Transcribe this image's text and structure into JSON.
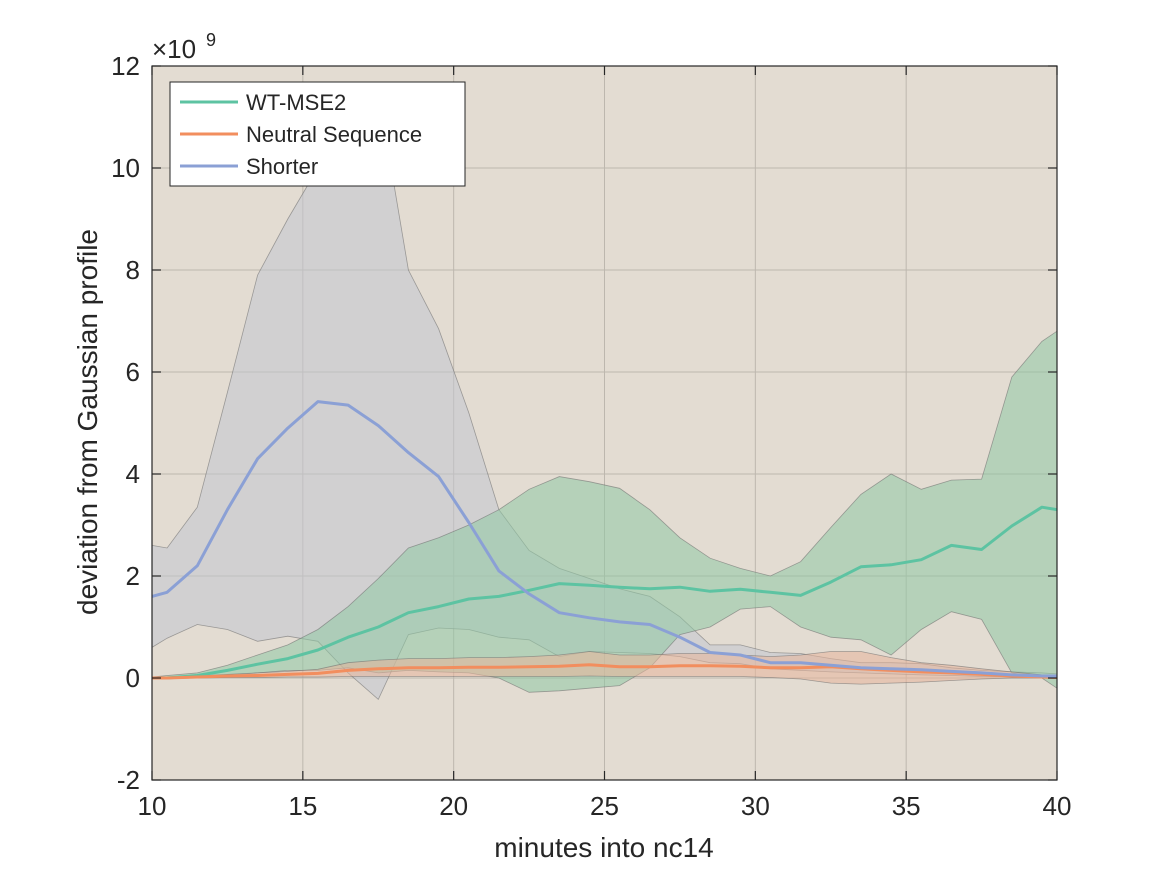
{
  "chart_data": {
    "type": "line",
    "title": "",
    "xlabel": "minutes into nc14",
    "ylabel": "deviation from Gaussian profile",
    "y_exponent_label": "×10",
    "y_exponent_power": "9",
    "xlim": [
      10,
      40
    ],
    "ylim": [
      -2,
      12
    ],
    "x_ticks": [
      10,
      15,
      20,
      25,
      30,
      35,
      40
    ],
    "y_ticks": [
      -2,
      0,
      2,
      4,
      6,
      8,
      10,
      12
    ],
    "x_tick_labels": [
      "10",
      "15",
      "20",
      "25",
      "30",
      "35",
      "40"
    ],
    "y_tick_labels": [
      "-2",
      "0",
      "2",
      "4",
      "6",
      "8",
      "10",
      "12"
    ],
    "grid": true,
    "legend_position": "top-left",
    "background_color": "#e3dcd2",
    "x": [
      10,
      10.5,
      11.5,
      12.5,
      13.5,
      14.5,
      15.5,
      16.5,
      17.5,
      18.5,
      19.5,
      20.5,
      21.5,
      22.5,
      23.5,
      24.5,
      25.5,
      26.5,
      27.5,
      28.5,
      29.5,
      30.5,
      31.5,
      32.5,
      33.5,
      34.5,
      35.5,
      36.5,
      37.5,
      38.5,
      39.5,
      40
    ],
    "series": [
      {
        "name": "WT-MSE2",
        "color": "#5dc3a2",
        "band_color": "#8fc9a4",
        "mean": [
          0,
          0,
          0.05,
          0.15,
          0.27,
          0.38,
          0.55,
          0.8,
          1.0,
          1.28,
          1.4,
          1.55,
          1.6,
          1.72,
          1.85,
          1.82,
          1.78,
          1.75,
          1.78,
          1.7,
          1.74,
          1.68,
          1.62,
          1.88,
          2.18,
          2.22,
          2.32,
          2.6,
          2.52,
          2.98,
          3.35,
          3.3
        ],
        "upper": [
          0.02,
          0.05,
          0.1,
          0.25,
          0.45,
          0.65,
          0.95,
          1.4,
          1.95,
          2.55,
          2.75,
          3.0,
          3.3,
          3.7,
          3.95,
          3.85,
          3.72,
          3.3,
          2.75,
          2.35,
          2.15,
          2.0,
          2.28,
          2.95,
          3.6,
          4.0,
          3.7,
          3.88,
          3.9,
          5.9,
          6.6,
          6.8
        ],
        "lower": [
          -0.02,
          -0.01,
          0.0,
          0.05,
          0.1,
          0.15,
          0.15,
          0.2,
          0.1,
          0.15,
          0.12,
          0.1,
          0.0,
          -0.28,
          -0.25,
          -0.2,
          -0.15,
          0.2,
          0.85,
          1.0,
          1.35,
          1.4,
          1.0,
          0.8,
          0.75,
          0.45,
          0.95,
          1.3,
          1.15,
          0.1,
          0.0,
          -0.2
        ]
      },
      {
        "name": "Neutral Sequence",
        "color": "#f28e5e",
        "band_color": "#e8b49a",
        "mean": [
          0,
          0,
          0.02,
          0.04,
          0.05,
          0.07,
          0.09,
          0.15,
          0.18,
          0.2,
          0.2,
          0.21,
          0.21,
          0.22,
          0.23,
          0.26,
          0.22,
          0.22,
          0.24,
          0.24,
          0.23,
          0.2,
          0.2,
          0.22,
          0.18,
          0.15,
          0.12,
          0.1,
          0.07,
          0.04,
          0.02,
          0.01
        ],
        "upper": [
          0.01,
          0.02,
          0.04,
          0.07,
          0.1,
          0.13,
          0.17,
          0.3,
          0.35,
          0.38,
          0.38,
          0.4,
          0.4,
          0.42,
          0.45,
          0.52,
          0.45,
          0.45,
          0.48,
          0.48,
          0.45,
          0.42,
          0.45,
          0.52,
          0.52,
          0.4,
          0.3,
          0.25,
          0.18,
          0.12,
          0.06,
          0.03
        ],
        "lower": [
          -0.01,
          -0.01,
          0.0,
          0.01,
          0.01,
          0.02,
          0.02,
          0.03,
          0.03,
          0.03,
          0.03,
          0.03,
          0.03,
          0.03,
          0.03,
          0.04,
          0.03,
          0.03,
          0.03,
          0.03,
          0.03,
          0.01,
          -0.02,
          -0.1,
          -0.12,
          -0.1,
          -0.08,
          -0.05,
          -0.02,
          0.0,
          0.0,
          -0.01
        ]
      },
      {
        "name": "Shorter",
        "color": "#8ba0d5",
        "band_color": "#c3c6d0",
        "mean": [
          1.6,
          1.68,
          2.2,
          3.3,
          4.3,
          4.9,
          5.42,
          5.35,
          4.95,
          4.42,
          3.95,
          3.05,
          2.1,
          1.65,
          1.28,
          1.18,
          1.1,
          1.05,
          0.8,
          0.5,
          0.45,
          0.3,
          0.3,
          0.25,
          0.2,
          0.18,
          0.16,
          0.13,
          0.1,
          0.06,
          0.04,
          0.04
        ],
        "upper": [
          2.6,
          2.55,
          3.35,
          5.6,
          7.9,
          9.0,
          10.0,
          11.0,
          11.5,
          8.0,
          6.85,
          5.2,
          3.3,
          2.5,
          2.15,
          1.95,
          1.75,
          1.6,
          1.2,
          0.65,
          0.65,
          0.5,
          0.48,
          0.38,
          0.3,
          0.3,
          0.28,
          0.2,
          0.15,
          0.12,
          0.1,
          0.08
        ],
        "lower": [
          0.6,
          0.78,
          1.05,
          0.95,
          0.72,
          0.82,
          0.72,
          0.1,
          -0.42,
          0.85,
          0.98,
          0.95,
          0.8,
          0.75,
          0.42,
          0.52,
          0.5,
          0.48,
          0.42,
          0.3,
          0.28,
          0.18,
          0.15,
          0.12,
          0.1,
          0.08,
          0.06,
          0.05,
          0.03,
          0.02,
          0.01,
          0.0
        ]
      }
    ]
  }
}
